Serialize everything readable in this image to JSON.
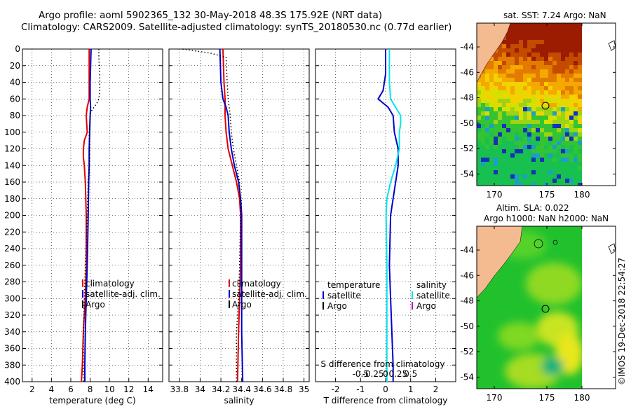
{
  "title": {
    "line1": "Argo profile: aoml 5902365_132 30-May-2018 48.3S 175.92E (NRT data)",
    "line2": "Climatology: CARS2009. Satellite-adjusted climatology: synTS_20180530.nc (0.77d earlier)"
  },
  "watermark": "©IMOS 19-Dec-2018 22:54:27",
  "colors": {
    "climatology": "#e00000",
    "satellite": "#0000cc",
    "argo": "#000000",
    "sal_satellite": "#00e5ee",
    "sal_argo": "#cc00cc"
  },
  "chart_data": [
    {
      "type": "line",
      "id": "temperature",
      "xlabel": "temperature (deg C)",
      "xlim": [
        1,
        15.5
      ],
      "xticks": [
        2,
        4,
        6,
        8,
        10,
        12,
        14
      ],
      "xtick_labels": [
        "2",
        "4",
        "6",
        "8",
        "10",
        "12",
        "14"
      ],
      "ylim": [
        0,
        400
      ],
      "yticks": [
        0,
        20,
        40,
        60,
        80,
        100,
        120,
        140,
        160,
        180,
        200,
        220,
        240,
        260,
        280,
        300,
        320,
        340,
        360,
        380,
        400
      ],
      "ytick_labels": [
        "0",
        "20",
        "40",
        "60",
        "80",
        "100",
        "120",
        "140",
        "160",
        "180",
        "200",
        "220",
        "240",
        "260",
        "280",
        "300",
        "320",
        "340",
        "360",
        "380",
        "400"
      ],
      "grid": true,
      "legend": [
        "climatology",
        "satellite-adj. clim.",
        "Argo"
      ],
      "series": [
        {
          "name": "climatology",
          "color": "#e00000",
          "style": "solid",
          "depth": [
            0,
            60,
            70,
            80,
            100,
            110,
            120,
            130,
            140,
            160,
            200,
            260,
            300,
            340,
            380,
            400
          ],
          "values": [
            7.9,
            7.9,
            7.7,
            7.6,
            7.7,
            7.4,
            7.3,
            7.3,
            7.4,
            7.5,
            7.6,
            7.6,
            7.5,
            7.3,
            7.2,
            7.1
          ]
        },
        {
          "name": "satellite-adj. clim.",
          "color": "#0000cc",
          "style": "solid",
          "depth": [
            0,
            40,
            60,
            70,
            80,
            100,
            120,
            140,
            160,
            200,
            260,
            300,
            340,
            380,
            400
          ],
          "values": [
            8.1,
            8.0,
            8.0,
            8.05,
            8.0,
            7.95,
            7.9,
            7.9,
            7.85,
            7.8,
            7.7,
            7.6,
            7.5,
            7.45,
            7.45
          ]
        },
        {
          "name": "Argo",
          "color": "#000000",
          "style": "dotted",
          "depth": [
            0,
            10,
            30,
            50,
            60,
            65,
            70,
            75,
            80,
            100,
            120,
            140,
            160,
            200,
            260,
            300,
            340,
            380,
            400
          ],
          "values": [
            8.9,
            8.9,
            9.0,
            9.0,
            8.9,
            8.7,
            8.4,
            8.1,
            8.0,
            7.9,
            7.95,
            7.9,
            7.8,
            7.7,
            7.5,
            7.4,
            7.3,
            7.3,
            7.3
          ]
        }
      ]
    },
    {
      "type": "line",
      "id": "salinity",
      "xlabel": "salinity",
      "xlim": [
        33.7,
        35.05
      ],
      "xticks": [
        33.8,
        34,
        34.2,
        34.4,
        34.6,
        34.8,
        35
      ],
      "xtick_labels": [
        "33.8",
        "34",
        "34.2",
        "34.4",
        "34.6",
        "34.8",
        "35"
      ],
      "ylim": [
        0,
        400
      ],
      "grid": true,
      "legend": [
        "climatology",
        "satellite-adj. clim.",
        "Argo"
      ],
      "series": [
        {
          "name": "climatology",
          "color": "#e00000",
          "style": "solid",
          "depth": [
            0,
            40,
            60,
            80,
            100,
            120,
            130,
            140,
            160,
            180,
            200,
            260,
            300,
            340,
            400
          ],
          "values": [
            34.22,
            34.23,
            34.24,
            34.24,
            34.25,
            34.27,
            34.29,
            34.31,
            34.35,
            34.38,
            34.39,
            34.39,
            34.38,
            34.37,
            34.36
          ]
        },
        {
          "name": "satellite-adj. clim.",
          "color": "#0000cc",
          "style": "solid",
          "depth": [
            0,
            40,
            60,
            70,
            80,
            100,
            120,
            140,
            160,
            180,
            200,
            260,
            300,
            340,
            400
          ],
          "values": [
            34.19,
            34.2,
            34.22,
            34.25,
            34.27,
            34.28,
            34.3,
            34.33,
            34.37,
            34.39,
            34.4,
            34.4,
            34.4,
            34.4,
            34.41
          ]
        },
        {
          "name": "Argo",
          "color": "#000000",
          "style": "dotted",
          "depth": [
            0,
            5,
            10,
            40,
            60,
            70,
            80,
            100,
            120,
            140,
            160,
            200,
            260,
            300,
            340,
            380,
            400
          ],
          "values": [
            33.83,
            34.1,
            34.25,
            34.26,
            34.27,
            34.28,
            34.29,
            34.3,
            34.32,
            34.35,
            34.38,
            34.39,
            34.38,
            34.37,
            34.35,
            34.35,
            34.35
          ]
        }
      ]
    },
    {
      "type": "line",
      "id": "difference",
      "xlabel": "T difference from climatology",
      "xlabel_top": "S difference from climatology",
      "xlim": [
        -2.8,
        2.8
      ],
      "xticks": [
        -2,
        -1,
        0,
        1,
        2
      ],
      "xtick_labels": [
        "-2",
        "-1",
        "0",
        "1",
        "2"
      ],
      "xticks_top": [
        -1,
        -0.5,
        0,
        0.5,
        1
      ],
      "xtick_labels_top": [
        "-0.5",
        "-0.25",
        "0",
        "0.25",
        "0.5"
      ],
      "ylim": [
        0,
        400
      ],
      "grid": true,
      "legend_temperature": {
        "heading": "temperature",
        "items": [
          "satellite",
          "Argo"
        ]
      },
      "legend_salinity": {
        "heading": "salinity",
        "items": [
          "satellite",
          "Argo"
        ]
      },
      "series": [
        {
          "name": "temperature satellite",
          "color": "#0000cc",
          "style": "solid",
          "depth": [
            0,
            30,
            50,
            55,
            60,
            70,
            80,
            100,
            120,
            140,
            160,
            200,
            260,
            300,
            340,
            380,
            400
          ],
          "values": [
            0.0,
            0.0,
            -0.1,
            -0.2,
            -0.3,
            0.1,
            0.3,
            0.35,
            0.5,
            0.5,
            0.4,
            0.2,
            0.15,
            0.2,
            0.25,
            0.3,
            0.3
          ]
        },
        {
          "name": "salinity satellite",
          "color": "#00e5ee",
          "style": "solid",
          "depth": [
            0,
            40,
            60,
            70,
            80,
            90,
            100,
            120,
            140,
            160,
            180,
            200,
            260,
            300,
            340,
            380,
            400
          ],
          "values": [
            0.15,
            0.15,
            0.2,
            0.4,
            0.6,
            0.6,
            0.55,
            0.55,
            0.4,
            0.2,
            0.05,
            0.02,
            0.05,
            0.05,
            0.05,
            0.05,
            0.05
          ]
        }
      ]
    },
    {
      "type": "heatmap",
      "id": "sst",
      "title": "sat. SST: 7.24 Argo: NaN",
      "yticks": [
        -44,
        -46,
        -48,
        -50,
        -52,
        -54
      ],
      "ytick_labels": [
        "-44",
        "-46",
        "-48",
        "-50",
        "-52",
        "-54"
      ],
      "xticks": [
        170,
        175,
        180
      ],
      "xtick_labels": [
        "170",
        "175",
        "180"
      ]
    },
    {
      "type": "heatmap",
      "id": "sla",
      "title": "Altim. SLA: 0.022",
      "subtitle": "Argo h1000: NaN h2000: NaN",
      "yticks": [
        -44,
        -46,
        -48,
        -50,
        -52,
        -54
      ],
      "ytick_labels": [
        "-44",
        "-46",
        "-48",
        "-50",
        "-52",
        "-54"
      ],
      "xticks": [
        170,
        175,
        180
      ],
      "xtick_labels": [
        "170",
        "175",
        "180"
      ]
    }
  ]
}
